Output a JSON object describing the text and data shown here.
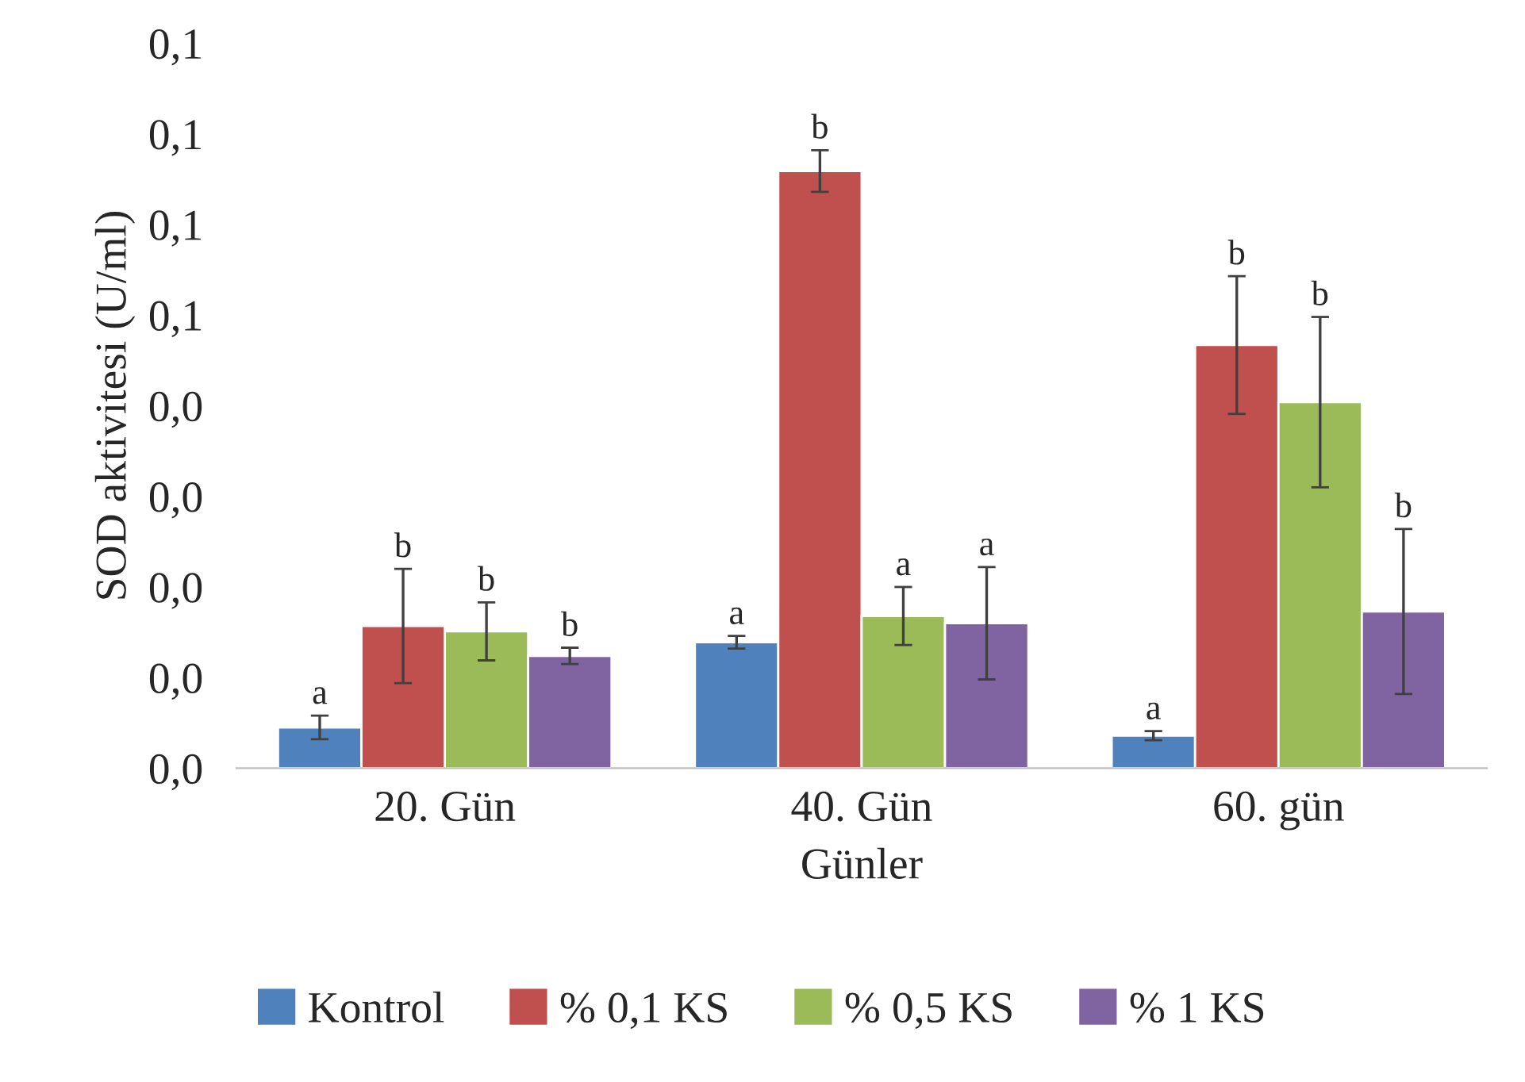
{
  "chart_data": {
    "type": "bar",
    "xlabel": "Günler",
    "ylabel": "SOD aktivitesi (U/ml)",
    "categories": [
      "20. Gün",
      "40. Gün",
      "60. gün"
    ],
    "series": [
      {
        "name": "Kontrol",
        "color": "#4f81bd",
        "values": [
          0.0045,
          0.0139,
          0.0036
        ],
        "errors": [
          0.0013,
          0.0007,
          0.0005
        ],
        "value_labels": [
          "a",
          "a",
          "a"
        ]
      },
      {
        "name": "% 0,1 KS",
        "color": "#c0504d",
        "values": [
          0.0157,
          0.0659,
          0.0467
        ],
        "errors": [
          0.0063,
          0.0023,
          0.0076
        ],
        "value_labels": [
          "b",
          "b",
          "b"
        ]
      },
      {
        "name": "% 0,5 KS",
        "color": "#9bbb59",
        "values": [
          0.0151,
          0.0168,
          0.0404
        ],
        "errors": [
          0.0032,
          0.0032,
          0.0094
        ],
        "value_labels": [
          "b",
          "a",
          "b"
        ]
      },
      {
        "name": "% 1 KS",
        "color": "#8064a2",
        "values": [
          0.0124,
          0.016,
          0.0173
        ],
        "errors": [
          0.0009,
          0.0062,
          0.0091
        ],
        "value_labels": [
          "b",
          "a",
          "b"
        ]
      }
    ],
    "ylim": [
      0,
      0.08
    ],
    "yticks": [
      {
        "value": 0,
        "label": "0,0"
      },
      {
        "value": 0.01,
        "label": "0,0"
      },
      {
        "value": 0.02,
        "label": "0,0"
      },
      {
        "value": 0.03,
        "label": "0,0"
      },
      {
        "value": 0.04,
        "label": "0,0"
      },
      {
        "value": 0.05,
        "label": "0,1"
      },
      {
        "value": 0.06,
        "label": "0,1"
      },
      {
        "value": 0.07,
        "label": "0,1"
      },
      {
        "value": 0.08,
        "label": "0,1"
      }
    ],
    "grid": false,
    "legend": "bottom"
  }
}
